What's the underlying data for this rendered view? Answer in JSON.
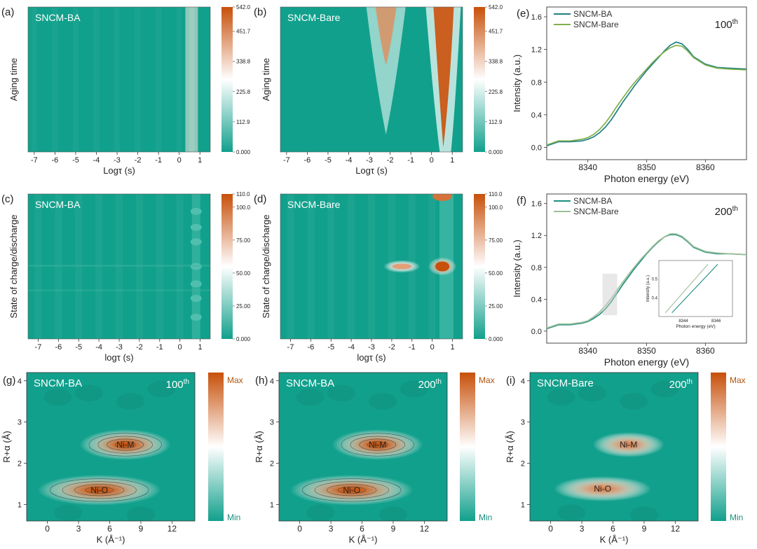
{
  "chart_data": [
    {
      "id": "a",
      "panel_label": "(a)",
      "type": "heatmap",
      "title": "SNCM-BA",
      "xlabel": "Logτ (s)",
      "ylabel": "Aging time",
      "xlim": [
        -7.3,
        1.5
      ],
      "xticks": [
        "-7",
        "-6",
        "-5",
        "-4",
        "-3",
        "-2",
        "-1",
        "0",
        "1"
      ],
      "colorbar": {
        "ticks": [
          "542.0",
          "451.7",
          "338.8",
          "225.8",
          "112.9",
          "0.000"
        ],
        "range": [
          0,
          542.0
        ]
      },
      "features": [
        {
          "x": 0.6,
          "y_from": 0,
          "y_to": 1,
          "intensity": 0.22
        }
      ]
    },
    {
      "id": "b",
      "panel_label": "(b)",
      "type": "heatmap",
      "title": "SNCM-Bare",
      "xlabel": "Logτ (s)",
      "ylabel": "Aging time",
      "xlim": [
        -7.3,
        1.5
      ],
      "xticks": [
        "-7",
        "-6",
        "-5",
        "-4",
        "-3",
        "-2",
        "-1",
        "0",
        "1"
      ],
      "colorbar": {
        "ticks": [
          "542.0",
          "451.7",
          "338.8",
          "225.8",
          "112.9",
          "0.000"
        ],
        "range": [
          0,
          542.0
        ]
      },
      "features": [
        {
          "x": -2.2,
          "peak_value": 420,
          "extends_over_aging_time": "upper half"
        },
        {
          "x": 0.6,
          "peak_value": 542,
          "extends_over_aging_time": "full range"
        }
      ]
    },
    {
      "id": "c",
      "panel_label": "(c)",
      "type": "heatmap",
      "title": "SNCM-BA",
      "xlabel": "logτ (s)",
      "ylabel": "State of charge/discharge",
      "xlim": [
        -7.5,
        1.5
      ],
      "xticks": [
        "-7",
        "-6",
        "-5",
        "-4",
        "-3",
        "-2",
        "-1",
        "0",
        "1"
      ],
      "colorbar": {
        "ticks": [
          "110.0",
          "100.0",
          "75.00",
          "50.00",
          "25.00",
          "0.000"
        ],
        "range": [
          0,
          110.0
        ]
      },
      "features": [
        {
          "x": 0.8,
          "intensity": 0.2
        }
      ]
    },
    {
      "id": "d",
      "panel_label": "(d)",
      "type": "heatmap",
      "title": "SNCM-Bare",
      "xlabel": "logτ (s)",
      "ylabel": "State of charge/discharge",
      "xlim": [
        -7.5,
        1.5
      ],
      "xticks": [
        "-7",
        "-6",
        "-5",
        "-4",
        "-3",
        "-2",
        "-1",
        "0",
        "1"
      ],
      "colorbar": {
        "ticks": [
          "110.0",
          "100.0",
          "75.00",
          "50.00",
          "25.00",
          "0.000"
        ],
        "range": [
          0,
          110.0
        ]
      },
      "features": [
        {
          "x": -1.5,
          "peak_value": 85
        },
        {
          "x": 0.5,
          "peak_value": 110
        },
        {
          "x": 0.7,
          "peak_value": 100
        }
      ]
    },
    {
      "id": "e",
      "panel_label": "(e)",
      "type": "line",
      "annotation_main": "100",
      "annotation_sup": "th",
      "xlabel": "Photon energy (eV)",
      "ylabel": "Intensity (a.u.)",
      "xlim": [
        8333,
        8367
      ],
      "ylim": [
        -0.15,
        1.72
      ],
      "xticks": [
        8340,
        8350,
        8360
      ],
      "yticks": [
        0.0,
        0.4,
        0.8,
        1.2,
        1.6
      ],
      "legend": [
        "SNCM-BA",
        "SNCM-Bare"
      ],
      "series": [
        {
          "name": "SNCM-BA",
          "color": "#1d7f84",
          "x": [
            8333,
            8335,
            8337,
            8339,
            8340,
            8341,
            8342,
            8343,
            8344,
            8345,
            8346,
            8347,
            8348,
            8349,
            8350,
            8351,
            8352,
            8353,
            8354,
            8355,
            8356,
            8357,
            8358,
            8360,
            8362,
            8364,
            8367
          ],
          "y": [
            0.02,
            0.07,
            0.07,
            0.08,
            0.1,
            0.13,
            0.18,
            0.25,
            0.34,
            0.45,
            0.56,
            0.66,
            0.76,
            0.85,
            0.94,
            1.02,
            1.1,
            1.18,
            1.25,
            1.29,
            1.27,
            1.2,
            1.11,
            1.02,
            0.98,
            0.97,
            0.96
          ]
        },
        {
          "name": "SNCM-Bare",
          "color": "#7fb04c",
          "x": [
            8333,
            8335,
            8337,
            8339,
            8340,
            8341,
            8342,
            8343,
            8344,
            8345,
            8346,
            8347,
            8348,
            8349,
            8350,
            8351,
            8352,
            8353,
            8354,
            8355,
            8356,
            8357,
            8358,
            8360,
            8362,
            8364,
            8367
          ],
          "y": [
            0.03,
            0.08,
            0.08,
            0.1,
            0.12,
            0.16,
            0.22,
            0.3,
            0.4,
            0.51,
            0.61,
            0.71,
            0.8,
            0.88,
            0.96,
            1.04,
            1.11,
            1.17,
            1.22,
            1.25,
            1.24,
            1.18,
            1.1,
            1.01,
            0.97,
            0.96,
            0.95
          ]
        }
      ]
    },
    {
      "id": "f",
      "panel_label": "(f)",
      "type": "line",
      "annotation_main": "200",
      "annotation_sup": "th",
      "xlabel": "Photon energy (eV)",
      "ylabel": "Intensity (a.u.)",
      "xlim": [
        8333,
        8367
      ],
      "ylim": [
        -0.15,
        1.72
      ],
      "xticks": [
        8340,
        8350,
        8360
      ],
      "yticks": [
        0.0,
        0.4,
        0.8,
        1.2,
        1.6
      ],
      "legend": [
        "SNCM-BA",
        "SNCM-Bare"
      ],
      "series": [
        {
          "name": "SNCM-BA",
          "color": "#1d8f7e",
          "x": [
            8333,
            8335,
            8337,
            8339,
            8340,
            8341,
            8342,
            8343,
            8344,
            8345,
            8346,
            8347,
            8348,
            8349,
            8350,
            8351,
            8352,
            8353,
            8354,
            8355,
            8356,
            8357,
            8358,
            8360,
            8362,
            8364,
            8367
          ],
          "y": [
            0.03,
            0.08,
            0.08,
            0.1,
            0.12,
            0.16,
            0.21,
            0.28,
            0.37,
            0.48,
            0.59,
            0.69,
            0.79,
            0.88,
            0.97,
            1.05,
            1.12,
            1.18,
            1.21,
            1.21,
            1.18,
            1.12,
            1.05,
            0.99,
            0.97,
            0.97,
            0.96
          ]
        },
        {
          "name": "SNCM-Bare",
          "color": "#9fbf9a",
          "x": [
            8333,
            8335,
            8337,
            8339,
            8340,
            8341,
            8342,
            8343,
            8344,
            8345,
            8346,
            8347,
            8348,
            8349,
            8350,
            8351,
            8352,
            8353,
            8354,
            8355,
            8356,
            8357,
            8358,
            8360,
            8362,
            8364,
            8367
          ],
          "y": [
            0.04,
            0.09,
            0.09,
            0.11,
            0.13,
            0.18,
            0.24,
            0.32,
            0.41,
            0.52,
            0.62,
            0.72,
            0.81,
            0.9,
            0.98,
            1.06,
            1.13,
            1.18,
            1.22,
            1.22,
            1.19,
            1.13,
            1.06,
            1.0,
            0.98,
            0.97,
            0.96
          ]
        }
      ],
      "inset": {
        "xlabel": "Photon energy (eV)",
        "ylabel": "Intensity (a.u.)",
        "xlim": [
          8342.5,
          8347
        ],
        "ylim": [
          0.3,
          0.6
        ],
        "xticks": [
          8344,
          8346
        ],
        "yticks": [
          0.4,
          0.5
        ],
        "series": [
          {
            "name": "SNCM-Bare",
            "x": [
              8342.9,
              8345.5
            ],
            "y": [
              0.32,
              0.58
            ]
          },
          {
            "name": "SNCM-BA",
            "x": [
              8343.3,
              8346.1
            ],
            "y": [
              0.32,
              0.58
            ]
          }
        ]
      }
    },
    {
      "id": "g",
      "panel_label": "(g)",
      "type": "heatmap",
      "title": "SNCM-BA",
      "annotation_main": "100",
      "annotation_sup": "th",
      "xlabel": "K (Å⁻¹)",
      "ylabel": "R+α (Å)",
      "xlim": [
        -2,
        14.2
      ],
      "ylim": [
        0.6,
        4.2
      ],
      "xticks": [
        0,
        3,
        6,
        9,
        12
      ],
      "yticks": [
        1,
        2,
        3,
        4
      ],
      "colorbar": {
        "ticks": [
          "Max",
          "Min"
        ]
      },
      "peaks": [
        {
          "label": "Ni-M",
          "k": 7.5,
          "r": 2.45,
          "k_width": 7.0,
          "r_width": 0.55,
          "intensity": 1.0
        },
        {
          "label": "Ni-O",
          "k": 5.0,
          "r": 1.35,
          "k_width": 9.5,
          "r_width": 0.55,
          "intensity": 1.0
        }
      ]
    },
    {
      "id": "h",
      "panel_label": "(h)",
      "type": "heatmap",
      "title": "SNCM-BA",
      "annotation_main": "200",
      "annotation_sup": "th",
      "xlabel": "K (Å⁻¹)",
      "ylabel": "R+α (Å)",
      "xlim": [
        -2,
        14.2
      ],
      "ylim": [
        0.6,
        4.2
      ],
      "xticks": [
        0,
        3,
        6,
        9,
        12
      ],
      "yticks": [
        1,
        2,
        3,
        4
      ],
      "colorbar": {
        "ticks": [
          "Max",
          "Min"
        ]
      },
      "peaks": [
        {
          "label": "Ni-M",
          "k": 7.5,
          "r": 2.45,
          "k_width": 7.0,
          "r_width": 0.55,
          "intensity": 1.0
        },
        {
          "label": "Ni-O",
          "k": 5.0,
          "r": 1.35,
          "k_width": 9.5,
          "r_width": 0.55,
          "intensity": 1.0
        }
      ]
    },
    {
      "id": "i",
      "panel_label": "(i)",
      "type": "heatmap",
      "title": "SNCM-Bare",
      "annotation_main": "200",
      "annotation_sup": "th",
      "xlabel": "K (Å⁻¹)",
      "ylabel": "R+α (Å)",
      "xlim": [
        -2,
        14.2
      ],
      "ylim": [
        0.6,
        4.2
      ],
      "xticks": [
        0,
        3,
        6,
        9,
        12
      ],
      "yticks": [
        1,
        2,
        3,
        4
      ],
      "colorbar": {
        "ticks": [
          "Max",
          "Min"
        ]
      },
      "peaks": [
        {
          "label": "Ni-M",
          "k": 7.5,
          "r": 2.45,
          "k_width": 5.5,
          "r_width": 0.45,
          "intensity": 0.85
        },
        {
          "label": "Ni-O",
          "k": 5.0,
          "r": 1.38,
          "k_width": 7.5,
          "r_width": 0.45,
          "intensity": 0.85
        }
      ]
    }
  ],
  "colors": {
    "low": "#11a08c",
    "mid": "#ffffff",
    "high": "#c8500a"
  }
}
